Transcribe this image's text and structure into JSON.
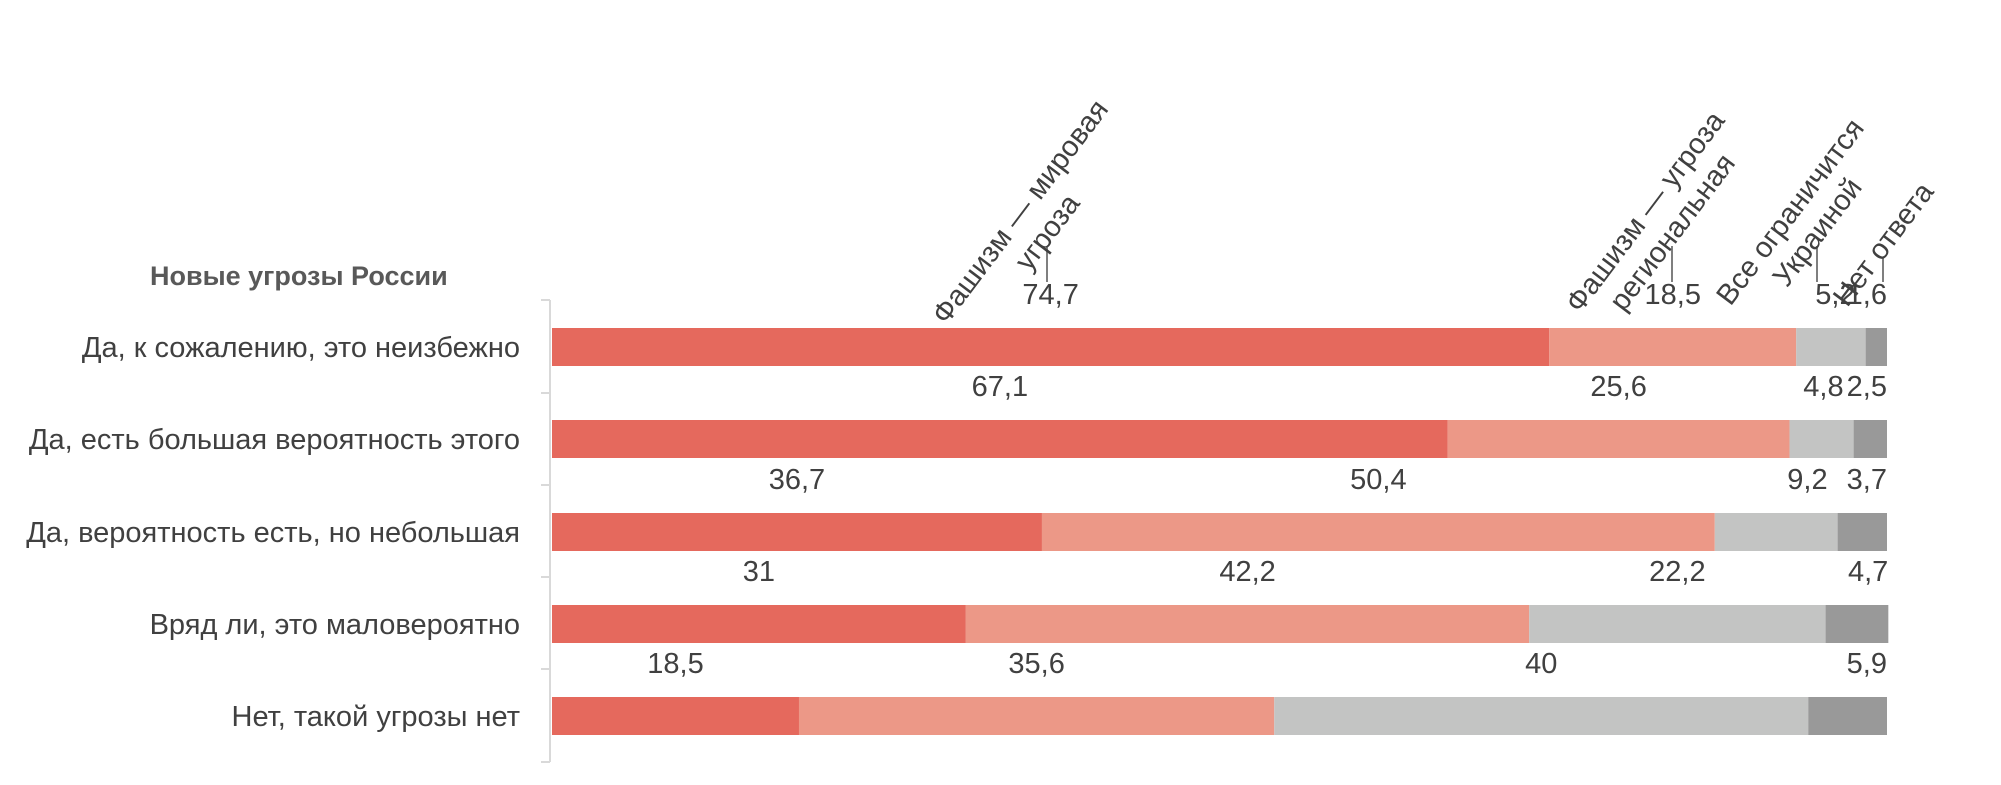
{
  "chart_data": {
    "type": "bar",
    "orientation": "horizontal",
    "stacked": true,
    "normalized": true,
    "title": "Новые угрозы России",
    "xlabel": "",
    "ylabel": "",
    "xlim": [
      0,
      100
    ],
    "grid": false,
    "legend_placement": "top, rotated labels above first bar",
    "categories": [
      "Да, к сожалению, это неизбежно",
      "Да, есть большая вероятность этого",
      "Да, вероятность есть, но небольшая",
      "Вряд ли, это маловероятно",
      "Нет, такой угрозы нет"
    ],
    "series": [
      {
        "name": "Фашизм — мировая угроза",
        "legend_lines": [
          "Фашизм — мировая",
          "угроза"
        ],
        "color": "#e5695d",
        "values": [
          74.7,
          67.1,
          36.7,
          31,
          18.5
        ],
        "labels": [
          "74,7",
          "67,1",
          "36,7",
          "31",
          "18,5"
        ]
      },
      {
        "name": "Фашизм — угроза региональная",
        "legend_lines": [
          "Фашизм — угроза",
          "региональная"
        ],
        "color": "#ec9887",
        "values": [
          18.5,
          25.6,
          50.4,
          42.2,
          35.6
        ],
        "labels": [
          "18,5",
          "25,6",
          "50,4",
          "42,2",
          "35,6"
        ]
      },
      {
        "name": "Все ограничится Украиной",
        "legend_lines": [
          "Все ограничится",
          "Украиной"
        ],
        "color": "#c3c4c3",
        "values": [
          5.2,
          4.8,
          9.2,
          22.2,
          40
        ],
        "labels": [
          "5,2",
          "4,8",
          "9,2",
          "22,2",
          "40"
        ]
      },
      {
        "name": "Нет ответа",
        "legend_lines": [
          "Нет ответа"
        ],
        "color": "#999999",
        "values": [
          1.6,
          2.5,
          3.7,
          4.7,
          5.9
        ],
        "labels": [
          "1,6",
          "2,5",
          "3,7",
          "4,7",
          "5,9"
        ]
      }
    ]
  }
}
